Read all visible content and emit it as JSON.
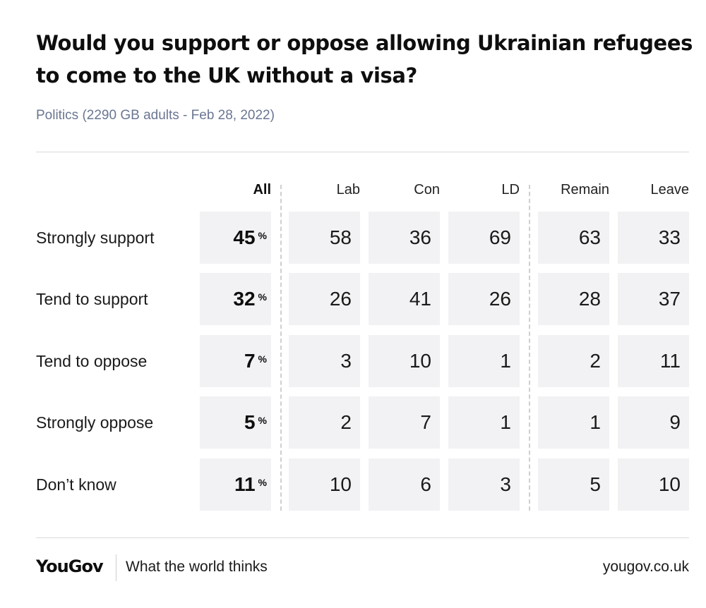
{
  "title": "Would you support or oppose allowing Ukrainian refugees to come to the UK without a visa?",
  "subtitle": "Politics (2290 GB adults - Feb 28, 2022)",
  "footer": {
    "brand": "YouGov",
    "tagline": "What the world thinks",
    "site": "yougov.co.uk"
  },
  "colors": {
    "cell_background": "#f2f2f4",
    "subtitle": "#6a7692",
    "text": "#1a1a1a"
  },
  "chart_data": {
    "type": "table",
    "title": "Would you support or oppose allowing Ukrainian refugees to come to the UK without a visa?",
    "unit_symbol": "%",
    "columns": [
      "All",
      "Lab",
      "Con",
      "LD",
      "Remain",
      "Leave"
    ],
    "rows": [
      {
        "label": "Strongly support",
        "values": [
          45,
          58,
          36,
          69,
          63,
          33
        ]
      },
      {
        "label": "Tend to support",
        "values": [
          32,
          26,
          41,
          26,
          28,
          37
        ]
      },
      {
        "label": "Tend to oppose",
        "values": [
          7,
          3,
          10,
          1,
          2,
          11
        ]
      },
      {
        "label": "Strongly oppose",
        "values": [
          5,
          2,
          7,
          1,
          1,
          9
        ]
      },
      {
        "label": "Don’t know",
        "values": [
          11,
          10,
          6,
          3,
          5,
          10
        ]
      }
    ]
  }
}
